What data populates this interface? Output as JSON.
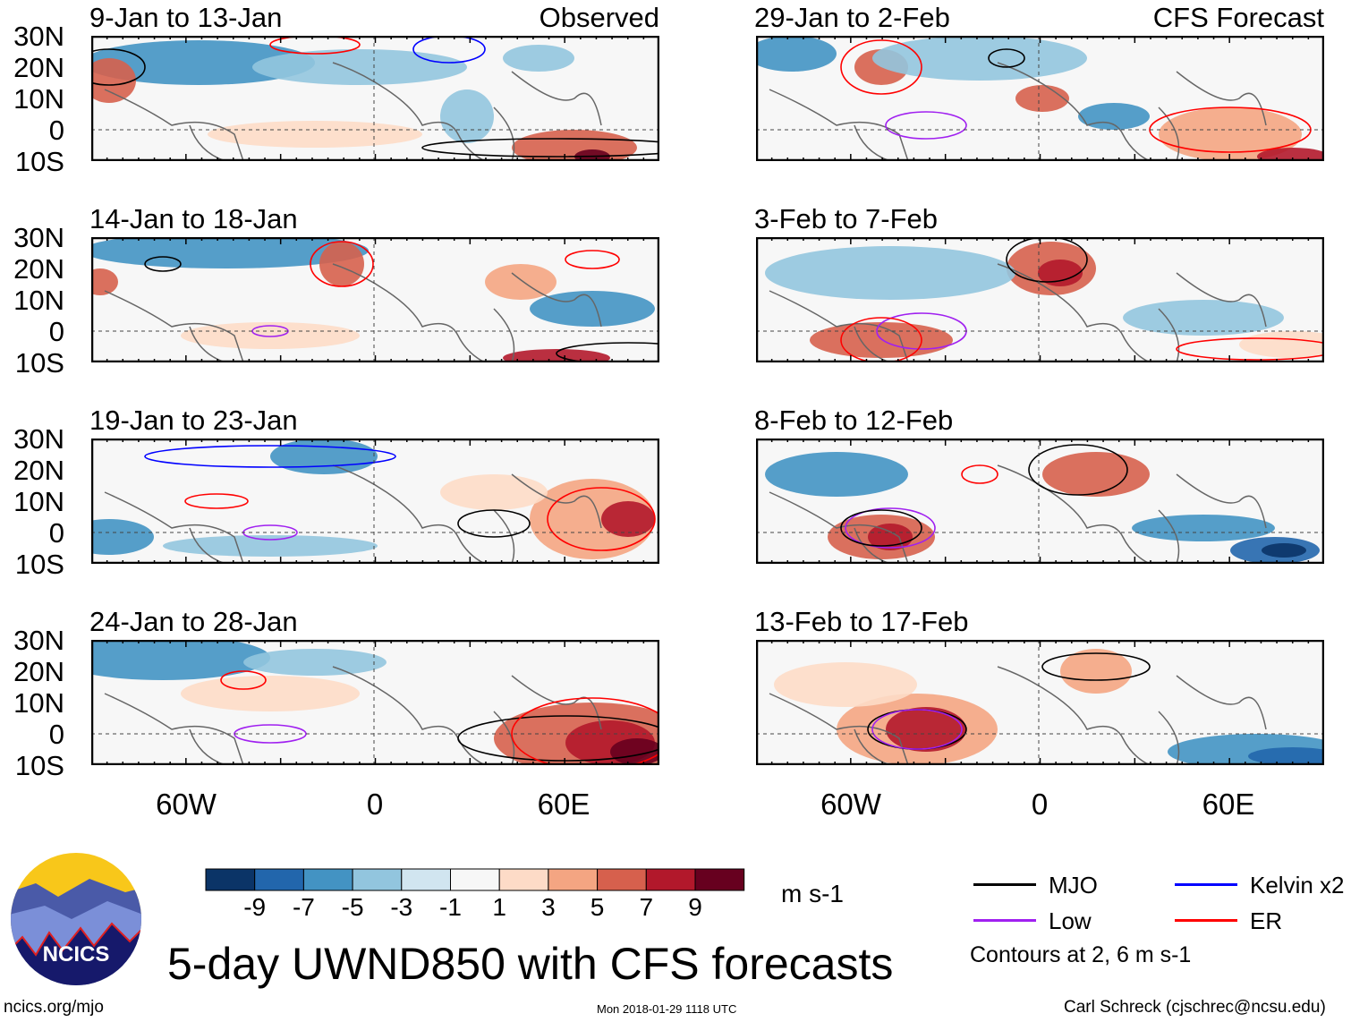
{
  "panels": [
    {
      "title": "9-Jan to 13-Jan",
      "tag": "Observed"
    },
    {
      "title": "29-Jan to 2-Feb",
      "tag": "CFS Forecast"
    },
    {
      "title": "14-Jan to 18-Jan",
      "tag": ""
    },
    {
      "title": "3-Feb to 7-Feb",
      "tag": ""
    },
    {
      "title": "19-Jan to 23-Jan",
      "tag": ""
    },
    {
      "title": "8-Feb to 12-Feb",
      "tag": ""
    },
    {
      "title": "24-Jan to 28-Jan",
      "tag": ""
    },
    {
      "title": "13-Feb to 17-Feb",
      "tag": ""
    }
  ],
  "lat_labels": [
    "30N",
    "20N",
    "10N",
    "0",
    "10S"
  ],
  "lon_labels": [
    "60W",
    "0",
    "60E"
  ],
  "colorbar": {
    "labels": [
      "-9",
      "-7",
      "-5",
      "-3",
      "-1",
      "1",
      "3",
      "5",
      "7",
      "9"
    ],
    "colors": [
      "#0b3467",
      "#2266ac",
      "#4393c3",
      "#92c5de",
      "#d1e5f0",
      "#f7f7f7",
      "#fddbc7",
      "#f4a582",
      "#d6604d",
      "#b2182b",
      "#67001f"
    ],
    "units": "m s-1"
  },
  "legend": {
    "items": [
      {
        "label": "MJO",
        "color": "#000000"
      },
      {
        "label": "Kelvin x2",
        "color": "#0000ff"
      },
      {
        "label": "Low",
        "color": "#a020f0"
      },
      {
        "label": "ER",
        "color": "#ff0000"
      }
    ],
    "note": "Contours at 2, 6 m s-1"
  },
  "title": "5-day UWND850 with CFS forecasts",
  "logo_text": "NCICS",
  "footer": {
    "url": "ncics.org/mjo",
    "timestamp": "Mon 2018-01-29 1118 UTC",
    "author": "Carl Schreck (cjschrec@ncsu.edu)"
  }
}
